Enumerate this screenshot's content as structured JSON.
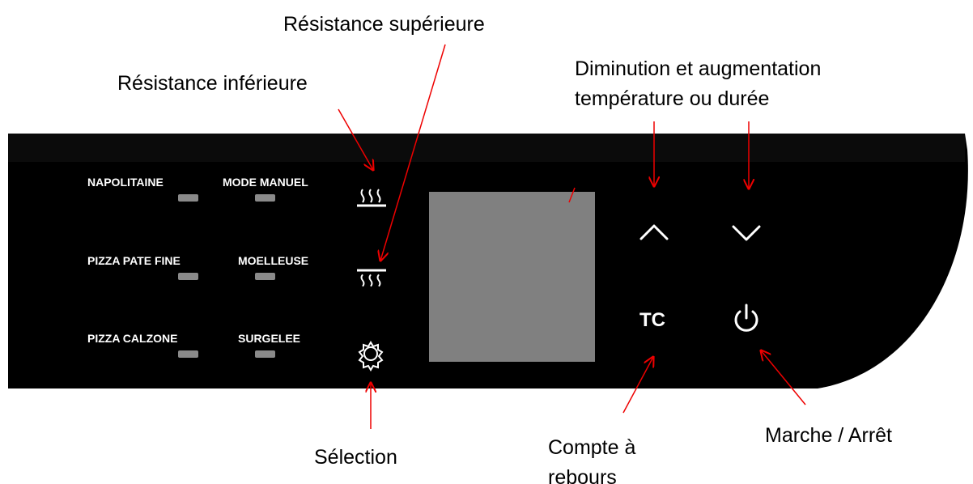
{
  "annotations": {
    "upper_heater": "Résistance supérieure",
    "lower_heater": "Résistance inférieure",
    "adjust": [
      "Diminution et augmentation",
      "température ou durée"
    ],
    "selection": "Sélection",
    "countdown": [
      "Compte à",
      "rebours"
    ],
    "power": "Marche / Arrêt"
  },
  "modes": [
    [
      "NAPOLITAINE",
      "MODE MANUEL"
    ],
    [
      "PIZZA PATE FINE",
      "MOELLEUSE"
    ],
    [
      "PIZZA CALZONE",
      "SURGELEE"
    ]
  ],
  "buttons": {
    "timer": "TC"
  }
}
